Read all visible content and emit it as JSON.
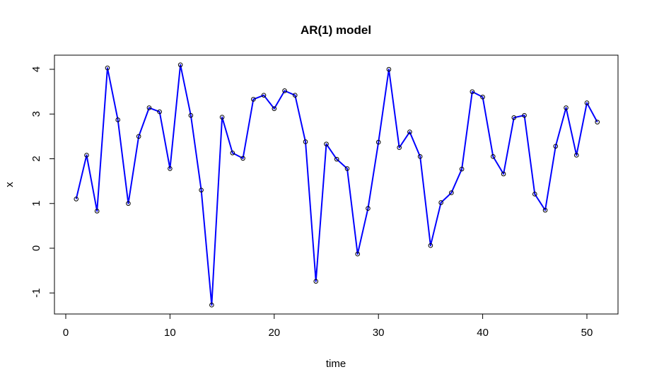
{
  "chart_data": {
    "type": "line",
    "title": "AR(1) model",
    "xlabel": "time",
    "ylabel": "x",
    "xlim": [
      0,
      53
    ],
    "ylim": [
      -1.5,
      4.3
    ],
    "xticks": [
      0,
      10,
      20,
      30,
      40,
      50
    ],
    "yticks": [
      -1,
      0,
      1,
      2,
      3,
      4
    ],
    "grid": false,
    "legend": "none",
    "line_color": "#0000ff",
    "marker": "open-circle",
    "series": [
      {
        "x": [
          1,
          2,
          3,
          4,
          5,
          6,
          7,
          8,
          9,
          10,
          11,
          12,
          13,
          14,
          15,
          16,
          17,
          18,
          19,
          20,
          21,
          22,
          23,
          24,
          25,
          26,
          27,
          28,
          29,
          30,
          31,
          32,
          33,
          34,
          35,
          36,
          37,
          38,
          39,
          40,
          41,
          42,
          43,
          44,
          45,
          46,
          47,
          48,
          49,
          50,
          51
        ],
        "values": [
          1.1,
          2.08,
          0.83,
          4.03,
          2.87,
          1.0,
          2.5,
          3.14,
          3.05,
          1.78,
          4.1,
          2.97,
          1.3,
          -1.27,
          2.93,
          2.13,
          2.01,
          3.33,
          3.42,
          3.12,
          3.52,
          3.42,
          2.38,
          -0.74,
          2.33,
          1.99,
          1.78,
          -0.13,
          0.89,
          2.37,
          4.0,
          2.25,
          2.6,
          2.05,
          0.06,
          1.02,
          1.24,
          1.77,
          3.5,
          3.38,
          2.05,
          1.66,
          2.92,
          2.97,
          1.21,
          0.85,
          2.28,
          3.14,
          2.08,
          3.25,
          2.82
        ]
      }
    ]
  }
}
